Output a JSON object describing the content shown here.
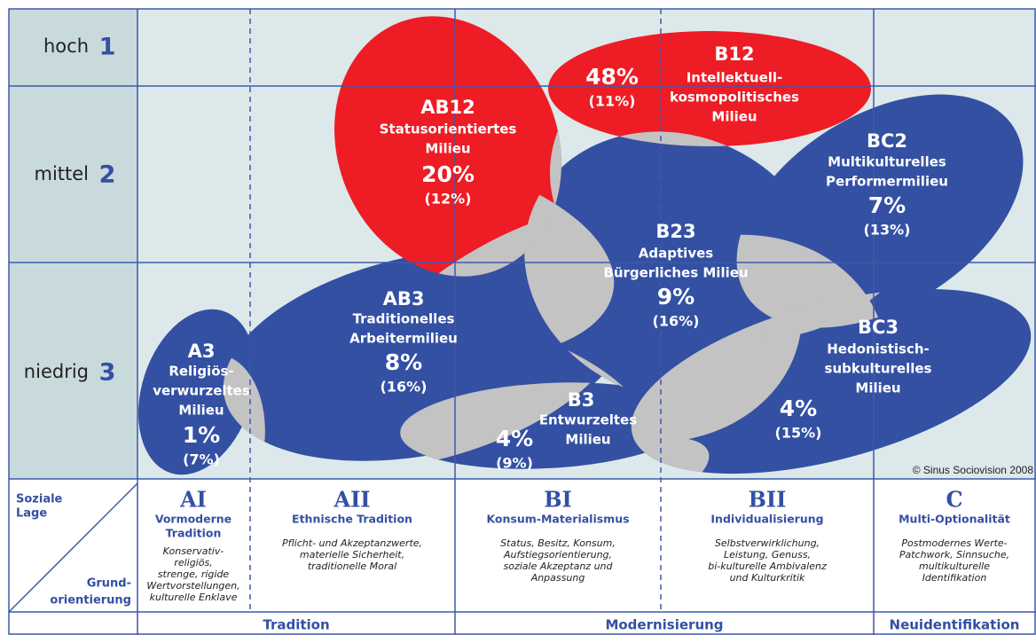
{
  "rows": [
    {
      "label": "hoch",
      "number": "1"
    },
    {
      "label": "mittel",
      "number": "2"
    },
    {
      "label": "niedrig",
      "number": "3"
    }
  ],
  "milieus": [
    {
      "code": "A3",
      "name_lines": [
        "Religiös-",
        "verwurzeltes",
        "Milieu"
      ],
      "share": "1%",
      "sample": "(7%)"
    },
    {
      "code": "AB3",
      "name_lines": [
        "Traditionelles",
        "Arbeitermilieu"
      ],
      "share": "8%",
      "sample": "(16%)"
    },
    {
      "code": "B3",
      "name_lines": [
        "Entwurzeltes",
        "Milieu"
      ],
      "share": "4%",
      "sample": "(9%)"
    },
    {
      "code": "B23",
      "name_lines": [
        "Adaptives",
        "Bürgerliches Milieu"
      ],
      "share": "9%",
      "sample": "(16%)"
    },
    {
      "code": "BC2",
      "name_lines": [
        "Multikulturelles",
        "Performermilieu"
      ],
      "share": "7%",
      "sample": "(13%)"
    },
    {
      "code": "BC3",
      "name_lines": [
        "Hedonistisch-",
        "subkulturelles",
        "Milieu"
      ],
      "share": "4%",
      "sample": "(15%)"
    },
    {
      "code": "AB12",
      "name_lines": [
        "Statusorientiertes",
        "Milieu"
      ],
      "share": "20%",
      "sample": "(12%)"
    },
    {
      "code": "B12",
      "name_lines": [
        "Intellektuell-",
        "kosmopolitisches",
        "Milieu"
      ],
      "share": "48%",
      "sample": "(11%)"
    }
  ],
  "copyright": "© Sinus Sociovision 2008",
  "corner": {
    "top_lines": [
      "Soziale",
      "Lage"
    ],
    "bottom_lines": [
      "Grund-",
      "orientierung"
    ]
  },
  "columns": [
    {
      "code": "AI",
      "title_lines": [
        "Vormoderne",
        "Tradition"
      ],
      "description_lines": [
        "Konservativ-",
        "religiös,",
        "strenge, rigide",
        "Wertvorstellungen,",
        "kulturelle Enklave"
      ]
    },
    {
      "code": "AII",
      "title_lines": [
        "Ethnische Tradition"
      ],
      "description_lines": [
        "Pflicht- und Akzeptanzwerte,",
        "materielle Sicherheit,",
        "traditionelle Moral"
      ]
    },
    {
      "code": "BI",
      "title_lines": [
        "Konsum-Materialismus"
      ],
      "description_lines": [
        "Status, Besitz, Konsum,",
        "Aufstiegsorientierung,",
        "soziale Akzeptanz und",
        "Anpassung"
      ]
    },
    {
      "code": "BII",
      "title_lines": [
        "Individualisierung"
      ],
      "description_lines": [
        "Selbstverwirklichung,",
        "Leistung, Genuss,",
        "bi-kulturelle Ambivalenz",
        "und Kulturkritik"
      ]
    },
    {
      "code": "C",
      "title_lines": [
        "Multi-Optionalität"
      ],
      "description_lines": [
        "Postmodernes Werte-",
        "Patchwork, Sinnsuche,",
        "multikulturelle",
        "Identifikation"
      ]
    }
  ],
  "groups": [
    "Tradition",
    "Modernisierung",
    "Neuidentifikation"
  ]
}
